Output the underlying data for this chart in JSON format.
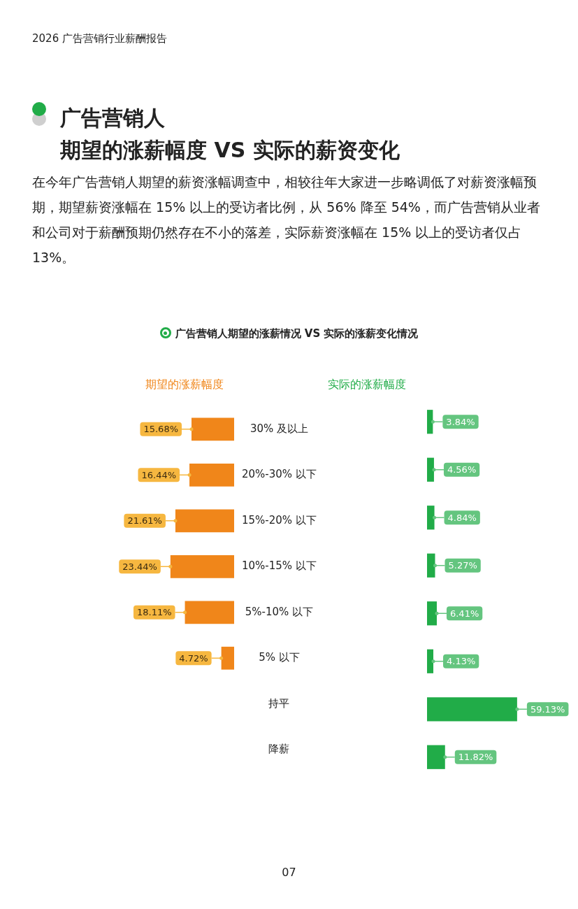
{
  "chart_data": [
    {
      "type": "bar",
      "orientation": "horizontal",
      "title": "期望的涨薪幅度",
      "categories": [
        "30% 及以上",
        "20%-30% 以下",
        "15%-20% 以下",
        "10%-15% 以下",
        "5%-10% 以下",
        "5% 以下",
        "持平",
        "降薪"
      ],
      "values": [
        15.68,
        16.44,
        21.61,
        23.44,
        18.11,
        4.72,
        null,
        null
      ],
      "value_labels": [
        "15.68%",
        "16.44%",
        "21.61%",
        "23.44%",
        "18.11%",
        "4.72%",
        null,
        null
      ],
      "color": "#f0861a",
      "tick_labels": "y",
      "annotations": [
        "2026 广告营销行业薪酬报告",
        "广告营销人",
        "期望的涨薪幅度 VS 实际的薪资变化",
        "在今年广告营销人期望的薪资涨幅调查中，相较往年大家进一步略调低了对薪资涨幅预期，期望薪资涨幅在 15% 以上的受访者比例，从 56% 降至 54%，而广告营销从业者和公司对于薪酬预期仍然存在不小的落差，实际薪资涨幅在 15% 以上的受访者仅占 13%。",
        "广告营销人期望的涨薪情况 VS 实际的涨薪变化情况",
        "07"
      ]
    },
    {
      "type": "bar",
      "orientation": "horizontal",
      "title": "实际的涨薪幅度",
      "categories": [
        null,
        null,
        null,
        null,
        null,
        null,
        null,
        null
      ],
      "values": [
        3.84,
        4.56,
        4.84,
        5.27,
        6.41,
        4.13,
        59.13,
        11.82
      ],
      "value_labels": [
        "3.84%",
        "4.56%",
        "4.84%",
        "5.27%",
        "6.41%",
        "4.13%",
        "59.13%",
        "11.82%"
      ],
      "color": "#21ac48",
      "tick_labels": false
    }
  ]
}
